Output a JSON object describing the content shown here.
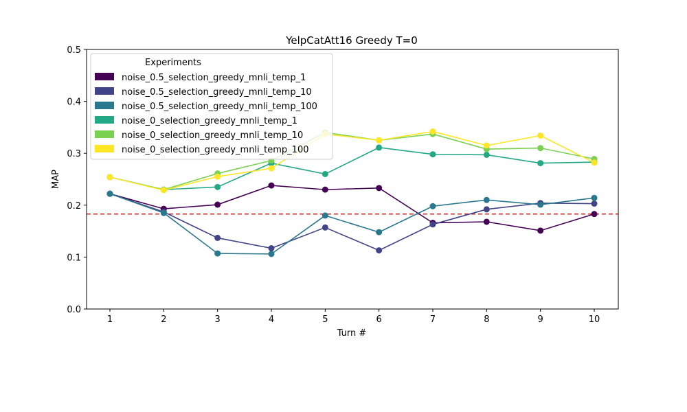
{
  "chart_data": {
    "type": "line",
    "title": "YelpCatAtt16 Greedy T=0",
    "xlabel": "Turn #",
    "ylabel": "MAP",
    "x": [
      1,
      2,
      3,
      4,
      5,
      6,
      7,
      8,
      9,
      10
    ],
    "ylim": [
      0.0,
      0.5
    ],
    "yticks": [
      "0.0",
      "0.1",
      "0.2",
      "0.3",
      "0.4",
      "0.5"
    ],
    "grid": false,
    "legend": {
      "title": "Experiments",
      "placement": "top-left"
    },
    "reference_line": {
      "y": 0.183,
      "color": "#d62728",
      "style": "dashed"
    },
    "series": [
      {
        "name": "noise_0.5_selection_greedy_mnli_temp_1",
        "color": "#440154",
        "values": [
          0.222,
          0.193,
          0.201,
          0.238,
          0.23,
          0.233,
          0.166,
          0.168,
          0.151,
          0.183
        ]
      },
      {
        "name": "noise_0.5_selection_greedy_mnli_temp_10",
        "color": "#414487",
        "values": [
          0.222,
          0.187,
          0.137,
          0.117,
          0.157,
          0.113,
          0.163,
          0.192,
          0.204,
          0.203
        ]
      },
      {
        "name": "noise_0.5_selection_greedy_mnli_temp_100",
        "color": "#2a788e",
        "values": [
          0.222,
          0.185,
          0.107,
          0.106,
          0.18,
          0.148,
          0.198,
          0.21,
          0.201,
          0.214
        ]
      },
      {
        "name": "noise_0_selection_greedy_mnli_temp_1",
        "color": "#22a884",
        "values": [
          0.254,
          0.23,
          0.235,
          0.281,
          0.26,
          0.311,
          0.298,
          0.297,
          0.281,
          0.283
        ]
      },
      {
        "name": "noise_0_selection_greedy_mnli_temp_10",
        "color": "#7ad151",
        "values": [
          0.254,
          0.23,
          0.261,
          0.286,
          0.34,
          0.325,
          0.337,
          0.308,
          0.31,
          0.289
        ]
      },
      {
        "name": "noise_0_selection_greedy_mnli_temp_100",
        "color": "#fde725",
        "values": [
          0.254,
          0.229,
          0.255,
          0.271,
          0.337,
          0.325,
          0.342,
          0.315,
          0.334,
          0.282
        ]
      }
    ]
  }
}
